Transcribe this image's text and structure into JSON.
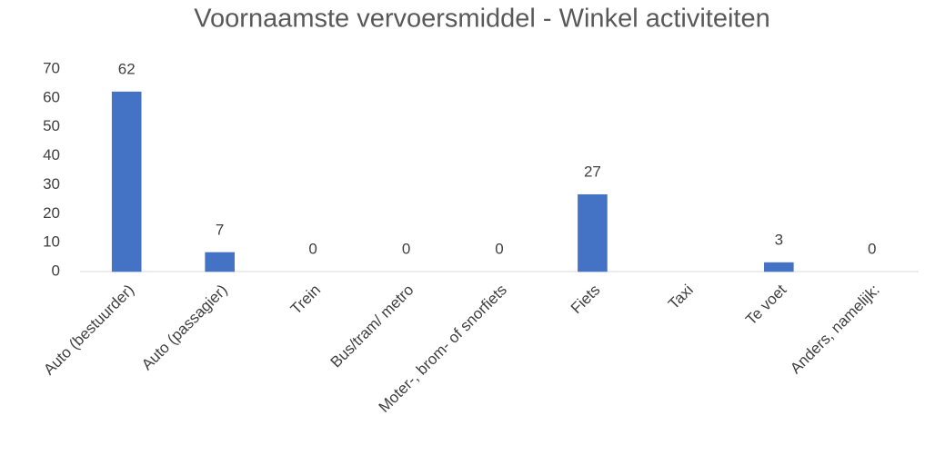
{
  "chart_data": {
    "type": "bar",
    "title": "Voornaamste vervoersmiddel - Winkel activiteiten",
    "categories": [
      "Auto (bestuurder)",
      "Auto (passagier)",
      "Trein",
      "Bus/tram/ metro",
      "Moter-, brom- of snorfiets",
      "Fiets",
      "Taxi",
      "Te voet",
      "Anders, namelijk:"
    ],
    "values": [
      62.1,
      6.6,
      0,
      0,
      0,
      26.6,
      null,
      3.1,
      0
    ],
    "value_labels": [
      "62",
      "7",
      "0",
      "0",
      "0",
      "27",
      null,
      "3",
      "0"
    ],
    "color": "#4472c4",
    "ylim": [
      0,
      70
    ],
    "yticks": [
      0,
      10,
      20,
      30,
      40,
      50,
      60,
      70
    ],
    "grid": false
  }
}
